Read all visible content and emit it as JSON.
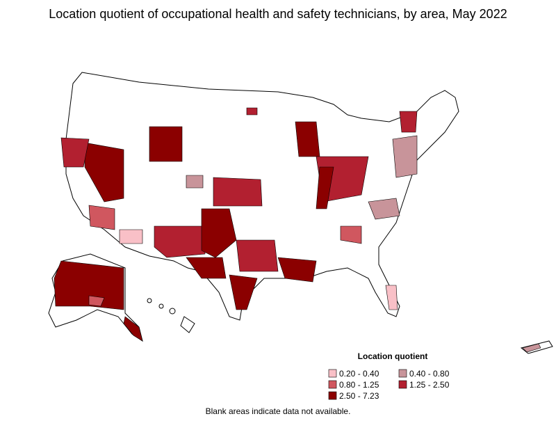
{
  "title": "Location quotient of occupational health and safety technicians, by area, May 2022",
  "legend": {
    "title": "Location quotient",
    "items": [
      {
        "label": "0.20 - 0.40",
        "color": "#f9c0c7"
      },
      {
        "label": "0.40 - 0.80",
        "color": "#c8949a"
      },
      {
        "label": "0.80 - 1.25",
        "color": "#d0575f"
      },
      {
        "label": "1.25 - 2.50",
        "color": "#b22030"
      },
      {
        "label": "2.50 - 7.23",
        "color": "#8b0000"
      }
    ]
  },
  "footnote": "Blank areas indicate data not available."
}
